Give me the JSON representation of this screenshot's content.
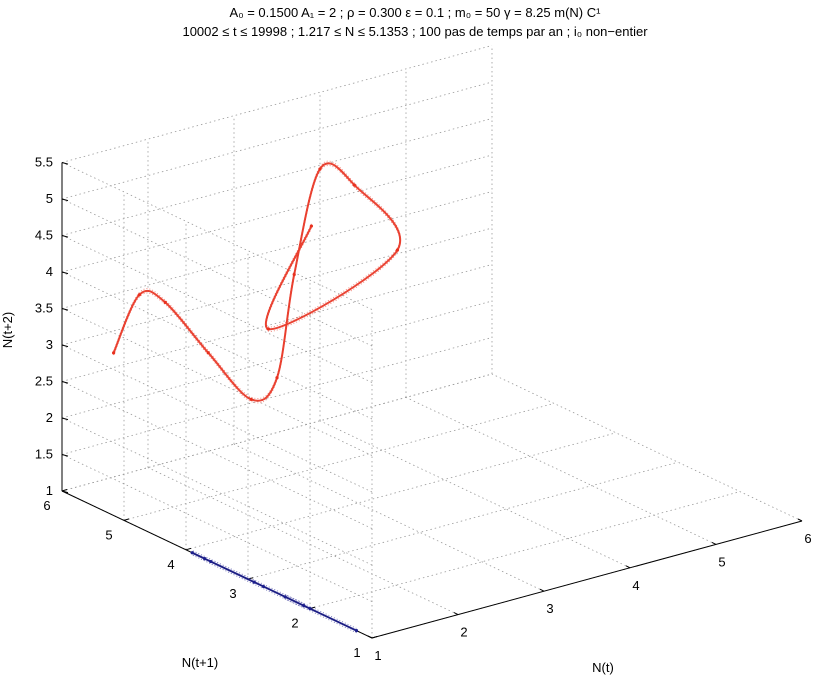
{
  "chart_data": {
    "type": "scatter",
    "title_lines": [
      "A₀ = 0.1500 A₁ = 2 ; ρ = 0.300 ε = 0.1 ; m₀ = 50 γ = 8.25 m(N) C¹",
      "10002 ≤ t ≤ 19998 ; 1.217 ≤ N ≤ 5.1353 ; 100 pas de temps par an ; i₀ non−entier"
    ],
    "xlabel": "N(t)",
    "ylabel": "N(t+1)",
    "zlabel": "N(t+2)",
    "xlim": [
      1,
      6
    ],
    "ylim": [
      1,
      6
    ],
    "zlim": [
      1,
      5.5
    ],
    "x_ticks": [
      "1",
      "2",
      "3",
      "4",
      "5",
      "6"
    ],
    "y_ticks": [
      "1",
      "2",
      "3",
      "4",
      "5",
      "6"
    ],
    "z_ticks": [
      "1",
      "1.5",
      "2",
      "2.5",
      "3",
      "3.5",
      "4",
      "4.5",
      "5",
      "5.5"
    ],
    "grid": true,
    "series": [
      {
        "color": "#e8301e",
        "description_points_xyz": [
          [
            1.6,
            6,
            2.7
          ],
          [
            1.9,
            6,
            3.4
          ],
          [
            2.2,
            6,
            3.2
          ],
          [
            2.7,
            6,
            2.35
          ],
          [
            3.2,
            6,
            1.55
          ],
          [
            3.5,
            6,
            1.75
          ],
          [
            3.7,
            6,
            3.1
          ],
          [
            4.0,
            6,
            4.45
          ],
          [
            4.4,
            6,
            4.1
          ],
          [
            4.9,
            6,
            3.05
          ],
          [
            3.4,
            6,
            2.45
          ],
          [
            3.9,
            6,
            3.7
          ]
        ]
      },
      {
        "color": "#1c1e8c",
        "description_points_xyz": [
          [
            1,
            1.25,
            1
          ],
          [
            1,
            2.0,
            1
          ],
          [
            1,
            2.4,
            1
          ],
          [
            1,
            2.1,
            1
          ],
          [
            1,
            2.75,
            1
          ],
          [
            1,
            3.6,
            1
          ],
          [
            1,
            3.9,
            1
          ],
          [
            1,
            3.7,
            1
          ],
          [
            1,
            2.9,
            1
          ]
        ]
      }
    ]
  }
}
